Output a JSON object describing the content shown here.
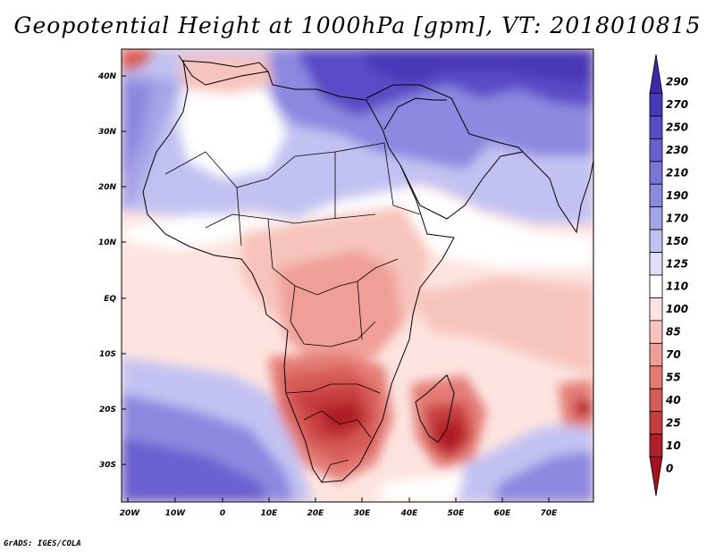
{
  "title": "Geopotential Height at 1000hPa [gpm], VT: 2018010815",
  "footer": "GrADS: IGES/COLA",
  "map": {
    "region": "Africa, Middle East and western Indian Ocean",
    "x_ticks": [
      "20W",
      "10W",
      "0",
      "10E",
      "20E",
      "30E",
      "40E",
      "50E",
      "60E",
      "70E"
    ],
    "y_ticks": [
      "40N",
      "30N",
      "20N",
      "10N",
      "EQ",
      "10S",
      "20S",
      "30S"
    ]
  },
  "colorbar": {
    "labels": [
      "290",
      "270",
      "250",
      "230",
      "210",
      "190",
      "170",
      "150",
      "125",
      "110",
      "100",
      "85",
      "70",
      "55",
      "40",
      "25",
      "10",
      "0"
    ],
    "colors": [
      "#3a2aa8",
      "#4839b8",
      "#5a4cc6",
      "#6b60d0",
      "#7b74d8",
      "#8d88e0",
      "#a6a4e8",
      "#c2c2f2",
      "#e0e0fa",
      "#ffffff",
      "#fde4e0",
      "#f7c4bc",
      "#ef9f96",
      "#e47c74",
      "#d65a55",
      "#c63c3c",
      "#b01f28",
      "#a81020"
    ]
  }
}
